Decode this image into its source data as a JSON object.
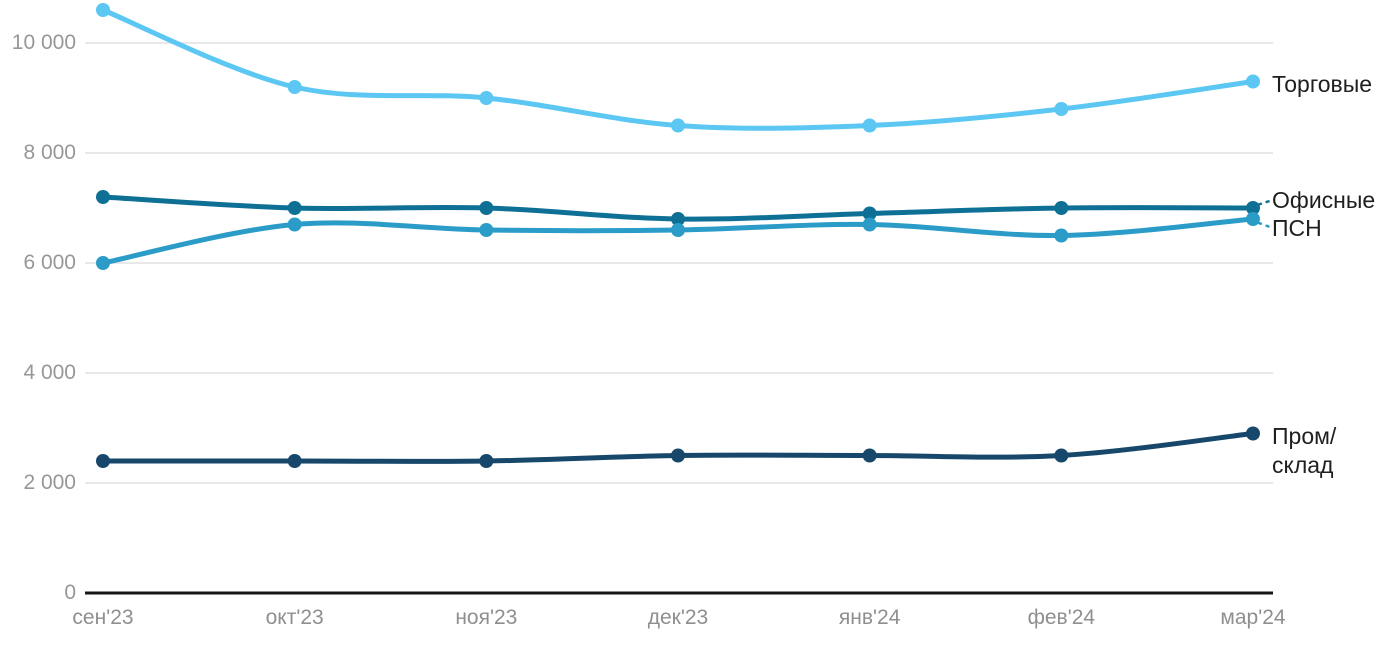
{
  "chart_data": {
    "type": "line",
    "title": "",
    "categories": [
      "сен'23",
      "окт'23",
      "ноя'23",
      "дек'23",
      "янв'24",
      "фев'24",
      "мар'24"
    ],
    "series": [
      {
        "name": "Торговые",
        "color": "#5BC7F2",
        "values": [
          10600,
          9200,
          9000,
          8500,
          8500,
          8800,
          9300
        ],
        "label": {
          "lines": [
            "Торговые"
          ],
          "dy": 3,
          "leader": false
        }
      },
      {
        "name": "Офисные",
        "color": "#0F7096",
        "values": [
          7200,
          7000,
          7000,
          6800,
          6900,
          7000,
          7000
        ],
        "label": {
          "lines": [
            "Офисные"
          ],
          "dy": -8,
          "leader": true
        }
      },
      {
        "name": "ПСН",
        "color": "#2B9CC8",
        "values": [
          6000,
          6700,
          6600,
          6600,
          6700,
          6500,
          6800
        ],
        "label": {
          "lines": [
            "ПСН"
          ],
          "dy": 9,
          "leader": true
        }
      },
      {
        "name": "Пром/склад",
        "color": "#17486B",
        "values": [
          2400,
          2400,
          2400,
          2500,
          2500,
          2500,
          2900
        ],
        "label": {
          "lines": [
            "Пром/",
            "склад"
          ],
          "dy": 3,
          "leader": false
        }
      }
    ],
    "y_axis": {
      "ticks": [
        0,
        2000,
        4000,
        6000,
        8000,
        10000
      ],
      "tick_labels": [
        "0",
        "2 000",
        "4 000",
        "6 000",
        "8 000",
        "10 000"
      ],
      "range": [
        0,
        11000
      ]
    },
    "grid": true,
    "legend_position": "right-of-last-point",
    "colors": {
      "gridline": "#E8E8E8",
      "axis_line": "#151515",
      "axis_text": "#979797",
      "label_text": "#1F1F1F",
      "background": "#FFFFFF"
    }
  }
}
